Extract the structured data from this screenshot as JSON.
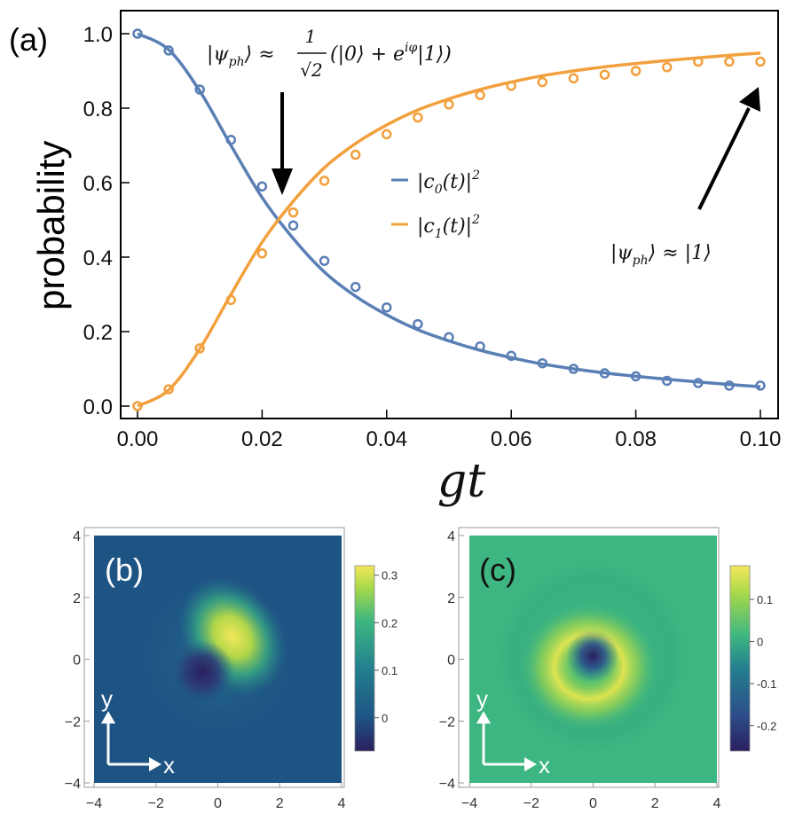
{
  "chart_data": [
    {
      "type": "line",
      "panel_label": "(a)",
      "xlabel": "gt",
      "ylabel": "probability",
      "xlim": [
        0,
        0.1
      ],
      "ylim": [
        0,
        1.05
      ],
      "x_ticks": [
        "0.00",
        "0.02",
        "0.04",
        "0.06",
        "0.08",
        "0.10"
      ],
      "y_ticks": [
        "0.0",
        "0.2",
        "0.4",
        "0.6",
        "0.8",
        "1.0"
      ],
      "series": [
        {
          "name": "|c0(t)|²",
          "legend_main": "|c",
          "legend_sub": "0",
          "legend_tail": "(t)|",
          "legend_sup": "2",
          "color": "#5a7fb5",
          "curve_x": [
            0,
            0.005,
            0.01,
            0.015,
            0.02,
            0.025,
            0.03,
            0.035,
            0.04,
            0.045,
            0.05,
            0.055,
            0.06,
            0.065,
            0.07,
            0.075,
            0.08,
            0.085,
            0.09,
            0.095,
            0.1
          ],
          "curve_y": [
            1.0,
            0.957,
            0.846,
            0.7,
            0.56,
            0.45,
            0.36,
            0.295,
            0.245,
            0.205,
            0.175,
            0.15,
            0.13,
            0.113,
            0.1,
            0.089,
            0.08,
            0.072,
            0.065,
            0.058,
            0.052
          ],
          "points_x": [
            0,
            0.005,
            0.01,
            0.015,
            0.02,
            0.025,
            0.03,
            0.035,
            0.04,
            0.045,
            0.05,
            0.055,
            0.06,
            0.065,
            0.07,
            0.075,
            0.08,
            0.085,
            0.09,
            0.095,
            0.1
          ],
          "points_y": [
            1.0,
            0.955,
            0.85,
            0.715,
            0.59,
            0.485,
            0.39,
            0.32,
            0.265,
            0.22,
            0.185,
            0.16,
            0.135,
            0.115,
            0.1,
            0.088,
            0.08,
            0.068,
            0.062,
            0.055,
            0.055
          ]
        },
        {
          "name": "|c1(t)|²",
          "legend_main": "|c",
          "legend_sub": "1",
          "legend_tail": "(t)|",
          "legend_sup": "2",
          "color": "#f2a03d",
          "curve_x": [
            0,
            0.005,
            0.01,
            0.015,
            0.02,
            0.025,
            0.03,
            0.035,
            0.04,
            0.045,
            0.05,
            0.055,
            0.06,
            0.065,
            0.07,
            0.075,
            0.08,
            0.085,
            0.09,
            0.095,
            0.1
          ],
          "curve_y": [
            0.0,
            0.043,
            0.154,
            0.3,
            0.44,
            0.55,
            0.64,
            0.705,
            0.755,
            0.795,
            0.825,
            0.85,
            0.87,
            0.887,
            0.9,
            0.911,
            0.92,
            0.928,
            0.935,
            0.942,
            0.948
          ],
          "points_x": [
            0,
            0.005,
            0.01,
            0.015,
            0.02,
            0.025,
            0.03,
            0.035,
            0.04,
            0.045,
            0.05,
            0.055,
            0.06,
            0.065,
            0.07,
            0.075,
            0.08,
            0.085,
            0.09,
            0.095,
            0.1
          ],
          "points_y": [
            0.0,
            0.045,
            0.155,
            0.285,
            0.41,
            0.52,
            0.605,
            0.675,
            0.73,
            0.775,
            0.81,
            0.835,
            0.86,
            0.87,
            0.88,
            0.89,
            0.9,
            0.91,
            0.925,
            0.925,
            0.925
          ]
        }
      ],
      "annotations": [
        {
          "label": "superposition-state",
          "text_a": "|ψ",
          "sub": "ph",
          "text_b": "⟩ ≈",
          "frac_num": "1",
          "frac_den": "√2",
          "text_c": "(|0⟩ + e",
          "sup": "iφ",
          "text_d": "|1⟩)",
          "arrow_to": [
            0.023,
            0.57
          ]
        },
        {
          "label": "single-photon-state",
          "text_a": "|ψ",
          "sub": "ph",
          "text_b": "⟩ ≈ |1⟩",
          "arrow_to": [
            0.1,
            0.9
          ]
        }
      ]
    },
    {
      "type": "heatmap",
      "panel_label": "(b)",
      "xlim": [
        -4,
        4
      ],
      "ylim": [
        -4,
        4
      ],
      "x_ticks": [
        "−4",
        "−2",
        "0",
        "2",
        "4"
      ],
      "y_ticks": [
        "4",
        "2",
        "0",
        "−2",
        "−4"
      ],
      "colorbar_ticks": [
        "0.3",
        "0.2",
        "0.1",
        "0"
      ],
      "colorbar_range": [
        -0.07,
        0.32
      ],
      "background_value": 0.0,
      "features": [
        {
          "kind": "peak",
          "x": 0.5,
          "y": 0.5,
          "value": 0.3
        },
        {
          "kind": "dip",
          "x": -0.55,
          "y": -0.5,
          "value": -0.06
        }
      ],
      "axis_x_label": "x",
      "axis_y_label": "y"
    },
    {
      "type": "heatmap",
      "panel_label": "(c)",
      "xlim": [
        -4,
        4
      ],
      "ylim": [
        -4,
        4
      ],
      "x_ticks": [
        "−4",
        "−2",
        "0",
        "2",
        "4"
      ],
      "y_ticks": [
        "4",
        "2",
        "0",
        "−2",
        "−4"
      ],
      "colorbar_ticks": [
        "0.1",
        "0",
        "-0.1",
        "-0.2"
      ],
      "colorbar_range": [
        -0.26,
        0.18
      ],
      "background_value": 0.0,
      "features": [
        {
          "kind": "dip",
          "x": 0.0,
          "y": 0.0,
          "value": -0.24
        },
        {
          "kind": "ring",
          "x": 0.0,
          "y": 0.0,
          "value": 0.17
        }
      ],
      "axis_x_label": "x",
      "axis_y_label": "y"
    }
  ],
  "colors": {
    "viridis_low": "#2b1f5e",
    "viridis_mid": "#23808e",
    "viridis_high": "#f4e85a",
    "panel_b_background": "#1e5484",
    "panel_c_background": "#3db681"
  }
}
